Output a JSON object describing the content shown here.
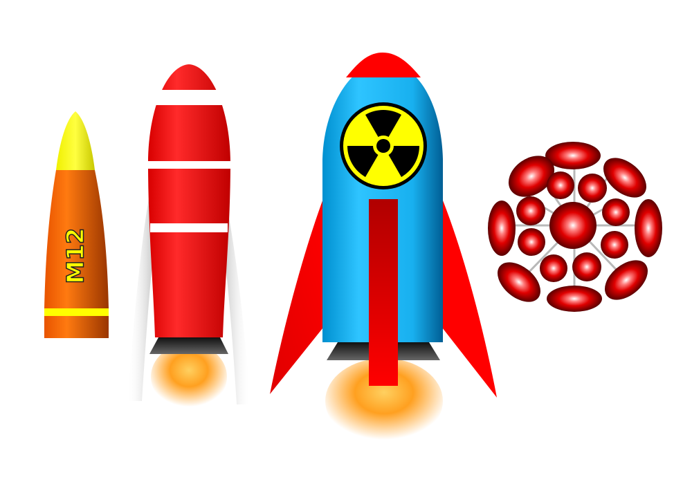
{
  "scene": {
    "background_color": "#ffffff"
  },
  "shell": {
    "label": "M12",
    "nose_color": "#ffff00",
    "body_color": "#ff6600",
    "band_color": "#ffff00",
    "label_color": "#ffff00"
  },
  "striped_rocket": {
    "body_color": "#ff0000",
    "stripe_color": "#ffffff",
    "flame_color": "#ffa500"
  },
  "radiation_rocket": {
    "body_color": "#00aeef",
    "nose_color": "#ff0000",
    "fin_color": "#ff0000",
    "center_bar_color": "#cc0000",
    "symbol_color": "#ffff00",
    "symbol_outline": "#000000",
    "flame_color": "#ffa500"
  },
  "cluster_bomb": {
    "bomblet_color": "#ff0000",
    "hub_color": "#bbbbbb"
  }
}
